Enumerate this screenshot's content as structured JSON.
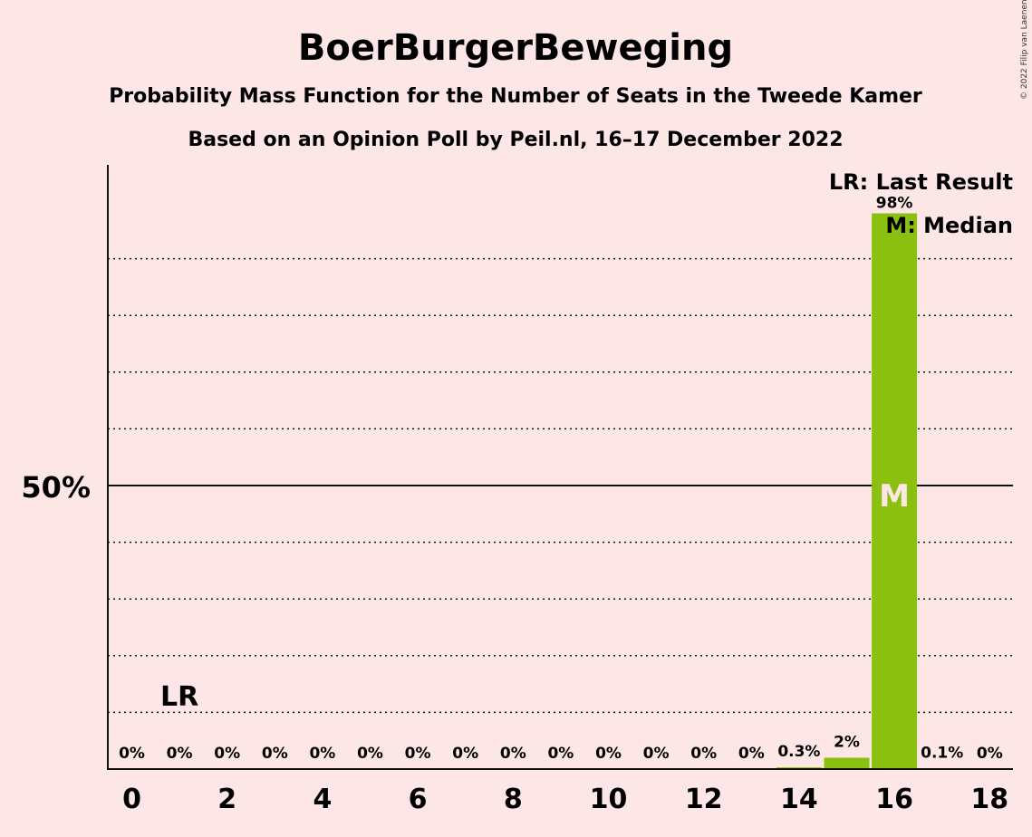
{
  "header": {
    "title": "BoerBurgerBeweging",
    "subtitle1": "Probability Mass Function for the Number of Seats in the Tweede Kamer",
    "subtitle2": "Based on an Opinion Poll by Peil.nl, 16–17 December 2022",
    "copyright": "© 2022 Filip van Laenen"
  },
  "legend": {
    "last_result": "LR: Last Result",
    "median": "M: Median"
  },
  "colors": {
    "background": "#FCE6E6",
    "bar": "#8BC010",
    "text": "#111111"
  },
  "chart_data": {
    "type": "bar",
    "x": [
      0,
      1,
      2,
      3,
      4,
      5,
      6,
      7,
      8,
      9,
      10,
      11,
      12,
      13,
      14,
      15,
      16,
      17,
      18
    ],
    "values": [
      0,
      0,
      0,
      0,
      0,
      0,
      0,
      0,
      0,
      0,
      0,
      0,
      0,
      0,
      0.3,
      2,
      98,
      0.1,
      0
    ],
    "labels": [
      "0%",
      "0%",
      "0%",
      "0%",
      "0%",
      "0%",
      "0%",
      "0%",
      "0%",
      "0%",
      "0%",
      "0%",
      "0%",
      "0%",
      "0.3%",
      "2%",
      "98%",
      "0.1%",
      "0%"
    ],
    "x_tick_labels": [
      "0",
      "2",
      "4",
      "6",
      "8",
      "10",
      "12",
      "14",
      "16",
      "18"
    ],
    "x_tick_values": [
      0,
      2,
      4,
      6,
      8,
      10,
      12,
      14,
      16,
      18
    ],
    "y_tick_label": "50%",
    "y_tick_value": 50,
    "ylim": [
      0,
      107
    ],
    "grid": "dotted every 10%",
    "last_result_seat": 1,
    "last_result_label": "LR",
    "median_seat": 16,
    "median_label": "M",
    "legend_position": "top-right"
  }
}
